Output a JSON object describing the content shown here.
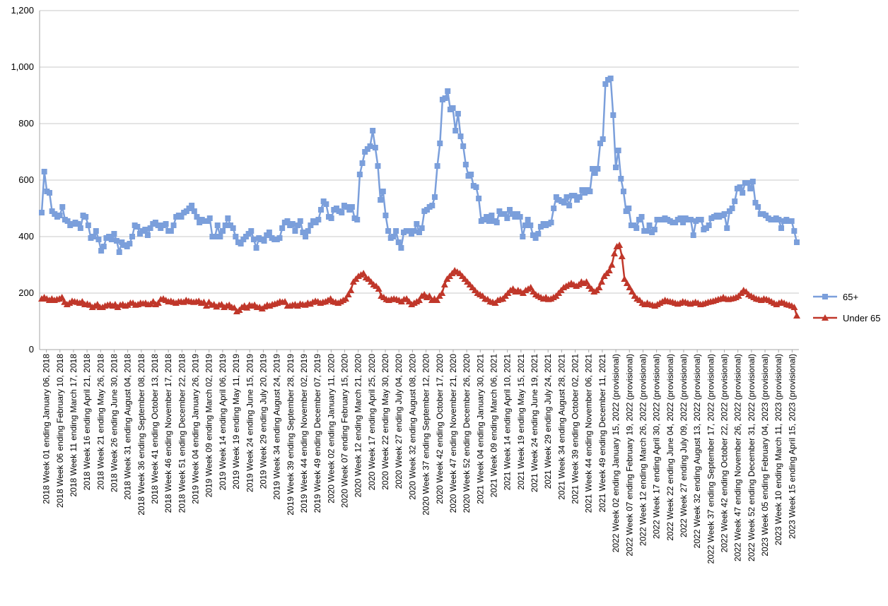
{
  "chart_data": {
    "type": "line",
    "title": "",
    "xlabel": "",
    "ylabel": "",
    "ylim": [
      0,
      1200
    ],
    "yticks": [
      0,
      200,
      400,
      600,
      800,
      1000,
      1200
    ],
    "ytick_labels": [
      "0",
      "200",
      "400",
      "600",
      "800",
      "1,000",
      "1,200"
    ],
    "grid": "horizontal",
    "legend": "right",
    "x_tick_labels": [
      "2018 Week 01 ending January 06, 2018",
      "2018 Week 06 ending February 10, 2018",
      "2018 Week 11 ending March 17, 2018",
      "2018 Week 16 ending April 21, 2018",
      "2018 Week 21 ending May 26, 2018",
      "2018 Week 26 ending June 30, 2018",
      "2018 Week 31 ending August 04, 2018",
      "2018 Week 36 ending September 08, 2018",
      "2018 Week 41 ending October 13, 2018",
      "2018 Week 46 ending November 17, 2018",
      "2018 Week 51 ending December 22, 2018",
      "2019 Week 04 ending January 26, 2019",
      "2019 Week 09 ending March 02, 2019",
      "2019 Week 14 ending April 06, 2019",
      "2019 Week 19 ending May 11, 2019",
      "2019 Week 24 ending June 15, 2019",
      "2019 Week 29 ending July 20, 2019",
      "2019 Week 34 ending August 24, 2019",
      "2019 Week 39 ending September 28, 2019",
      "2019 Week 44 ending November 02, 2019",
      "2019 Week 49 ending December 07, 2019",
      "2020 Week 02 ending January 11, 2020",
      "2020 Week 07 ending February 15, 2020",
      "2020 Week 12 ending March 21, 2020",
      "2020 Week 17 ending April 25, 2020",
      "2020 Week 22 ending May 30, 2020",
      "2020 Week 27 ending July 04, 2020",
      "2020 Week 32 ending August 08, 2020",
      "2020 Week 37 ending September 12, 2020",
      "2020 Week 42 ending October 17, 2020",
      "2020 Week 47 ending November 21, 2020",
      "2020 Week 52 ending December 26, 2020",
      "2021 Week 04 ending January 30, 2021",
      "2021 Week 09 ending March 06, 2021",
      "2021 Week 14 ending April 10, 2021",
      "2021 Week 19 ending May 15, 2021",
      "2021 Week 24 ending June 19, 2021",
      "2021 Week 29 ending July 24, 2021",
      "2021 Week 34 ending August 28, 2021",
      "2021 Week 39 ending October 02, 2021",
      "2021 Week 44 ending November 06, 2021",
      "2021 Week 49 ending December 11, 2021",
      "2022 Week 02 ending January 15, 2022 (provisional)",
      "2022 Week 07 ending February 19, 2022 (provisional)",
      "2022 Week 12 ending March 26, 2022 (provisional)",
      "2022 Week 17 ending April 30, 2022 (provisional)",
      "2022 Week 22 ending June 04, 2022 (provisional)",
      "2022 Week 27 ending July 09, 2022 (provisional)",
      "2022 Week 32 ending August 13, 2022 (provisional)",
      "2022 Week 37 ending September 17, 2022 (provisional)",
      "2022 Week 42 ending October 22, 2022 (provisional)",
      "2022 Week 47 ending November 26, 2022 (provisional)",
      "2022 Week 52 ending December 31, 2022 (provisional)",
      "2023 Week 05 ending February 04, 2023 (provisional)",
      "2023 Week 10 ending March 11, 2023 (provisional)",
      "2023 Week 15 ending April 15, 2023 (provisional)"
    ],
    "series": [
      {
        "name": "65+",
        "color": "#7b9fdb",
        "marker": "square",
        "values": [
          485,
          630,
          560,
          555,
          490,
          480,
          470,
          475,
          505,
          460,
          455,
          440,
          445,
          450,
          445,
          430,
          475,
          470,
          440,
          395,
          400,
          420,
          390,
          350,
          365,
          395,
          400,
          390,
          410,
          385,
          345,
          380,
          370,
          365,
          375,
          400,
          440,
          435,
          410,
          420,
          425,
          405,
          430,
          445,
          450,
          440,
          430,
          440,
          445,
          420,
          420,
          440,
          470,
          475,
          470,
          485,
          490,
          500,
          510,
          490,
          470,
          450,
          460,
          455,
          455,
          465,
          400,
          400,
          440,
          400,
          420,
          440,
          465,
          440,
          430,
          400,
          380,
          375,
          390,
          400,
          410,
          420,
          390,
          360,
          395,
          390,
          385,
          405,
          415,
          395,
          390,
          390,
          395,
          430,
          450,
          455,
          440,
          445,
          420,
          440,
          455,
          415,
          400,
          420,
          440,
          455,
          450,
          460,
          495,
          525,
          515,
          470,
          465,
          495,
          500,
          490,
          485,
          510,
          505,
          495,
          505,
          465,
          460,
          620,
          660,
          700,
          710,
          720,
          775,
          715,
          650,
          530,
          560,
          475,
          420,
          395,
          400,
          420,
          380,
          360,
          415,
          420,
          420,
          410,
          420,
          445,
          415,
          430,
          490,
          495,
          505,
          510,
          540,
          650,
          730,
          885,
          890,
          915,
          850,
          855,
          775,
          835,
          755,
          720,
          655,
          615,
          620,
          580,
          575,
          535,
          455,
          460,
          470,
          455,
          475,
          455,
          450,
          490,
          480,
          480,
          465,
          495,
          480,
          470,
          480,
          470,
          400,
          440,
          460,
          440,
          405,
          395,
          410,
          435,
          445,
          440,
          445,
          450,
          500,
          540,
          530,
          525,
          520,
          540,
          510,
          545,
          545,
          530,
          540,
          565,
          555,
          565,
          560,
          640,
          625,
          640,
          730,
          745,
          940,
          955,
          960,
          830,
          645,
          705,
          605,
          560,
          490,
          500,
          440,
          440,
          430,
          460,
          470,
          420,
          420,
          440,
          415,
          425,
          460,
          460,
          460,
          465,
          460,
          455,
          450,
          450,
          460,
          465,
          450,
          465,
          460,
          460,
          405,
          455,
          460,
          460,
          425,
          430,
          440,
          465,
          470,
          475,
          470,
          475,
          480,
          430,
          490,
          500,
          525,
          570,
          575,
          555,
          590,
          590,
          570,
          595,
          520,
          505,
          480,
          480,
          475,
          465,
          460,
          460,
          465,
          460,
          430,
          455,
          460,
          455,
          455,
          420,
          380
        ]
      },
      {
        "name": "Under 65",
        "color": "#c0372a",
        "marker": "triangle",
        "values": [
          180,
          185,
          180,
          175,
          180,
          175,
          178,
          180,
          185,
          168,
          160,
          165,
          172,
          170,
          168,
          165,
          170,
          160,
          162,
          158,
          150,
          155,
          160,
          150,
          150,
          155,
          158,
          160,
          155,
          160,
          150,
          158,
          160,
          155,
          158,
          165,
          165,
          158,
          160,
          165,
          163,
          165,
          160,
          162,
          170,
          160,
          165,
          178,
          180,
          175,
          170,
          172,
          168,
          165,
          170,
          170,
          168,
          175,
          172,
          170,
          168,
          170,
          172,
          165,
          168,
          155,
          168,
          158,
          160,
          152,
          158,
          160,
          150,
          155,
          158,
          150,
          148,
          135,
          140,
          150,
          155,
          148,
          158,
          155,
          158,
          150,
          150,
          145,
          152,
          158,
          155,
          160,
          162,
          165,
          170,
          168,
          170,
          155,
          155,
          158,
          160,
          155,
          162,
          160,
          158,
          165,
          162,
          168,
          172,
          170,
          165,
          168,
          170,
          175,
          180,
          170,
          168,
          165,
          170,
          175,
          180,
          195,
          210,
          240,
          250,
          260,
          265,
          270,
          255,
          250,
          240,
          230,
          225,
          215,
          190,
          185,
          178,
          175,
          178,
          180,
          178,
          175,
          170,
          178,
          180,
          170,
          160,
          165,
          170,
          175,
          190,
          195,
          185,
          190,
          175,
          180,
          175,
          190,
          200,
          230,
          250,
          260,
          270,
          280,
          275,
          270,
          260,
          250,
          240,
          230,
          220,
          210,
          200,
          195,
          190,
          180,
          178,
          170,
          168,
          165,
          175,
          178,
          180,
          190,
          200,
          210,
          215,
          205,
          210,
          205,
          200,
          210,
          215,
          220,
          205,
          195,
          190,
          185,
          180,
          185,
          178,
          180,
          185,
          190,
          200,
          210,
          220,
          225,
          230,
          235,
          230,
          225,
          230,
          240,
          235,
          240,
          225,
          215,
          205,
          210,
          220,
          240,
          260,
          270,
          280,
          300,
          340,
          365,
          370,
          330,
          250,
          235,
          220,
          205,
          190,
          180,
          175,
          165,
          160,
          165,
          160,
          158,
          155,
          160,
          165,
          170,
          175,
          172,
          170,
          168,
          165,
          162,
          165,
          170,
          168,
          165,
          162,
          165,
          168,
          165,
          160,
          162,
          165,
          168,
          170,
          172,
          175,
          178,
          180,
          185,
          180,
          178,
          180,
          182,
          185,
          190,
          200,
          210,
          205,
          195,
          190,
          185,
          180,
          178,
          175,
          180,
          178,
          175,
          170,
          165,
          160,
          165,
          168,
          165,
          160,
          158,
          155,
          150,
          120
        ]
      }
    ]
  }
}
